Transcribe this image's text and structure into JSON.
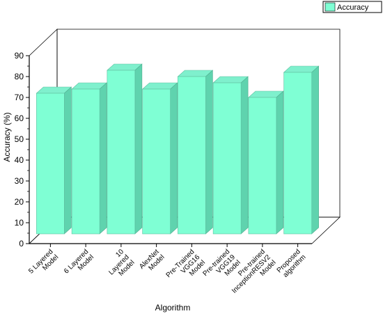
{
  "chart_data": {
    "type": "bar",
    "title": "",
    "xlabel": "Algorithm",
    "ylabel": "Accuracy (%)",
    "categories": [
      [
        "5 Layered",
        "Model"
      ],
      [
        "6 Layered",
        "Model"
      ],
      [
        "10",
        "Layered",
        "Model"
      ],
      [
        "AlexNet",
        "Model"
      ],
      [
        "Pre-Trained",
        "VGG16",
        "Model"
      ],
      [
        "Pre-trained",
        "VGG19",
        "Model"
      ],
      [
        "Pre-trained",
        "InceptionRESV2",
        "Model"
      ],
      [
        "Proposed",
        "algorithm"
      ]
    ],
    "series": [
      {
        "name": "Accuracy",
        "values": [
          72,
          74,
          83,
          74,
          80,
          77,
          70,
          82
        ],
        "color": "#7fffd4"
      }
    ],
    "yticks": [
      "0",
      "10",
      "20",
      "30",
      "40",
      "50",
      "60",
      "70",
      "80",
      "90"
    ],
    "ylim": [
      0,
      90
    ],
    "grid": false,
    "legend_position": "top-right",
    "style": "3d"
  }
}
